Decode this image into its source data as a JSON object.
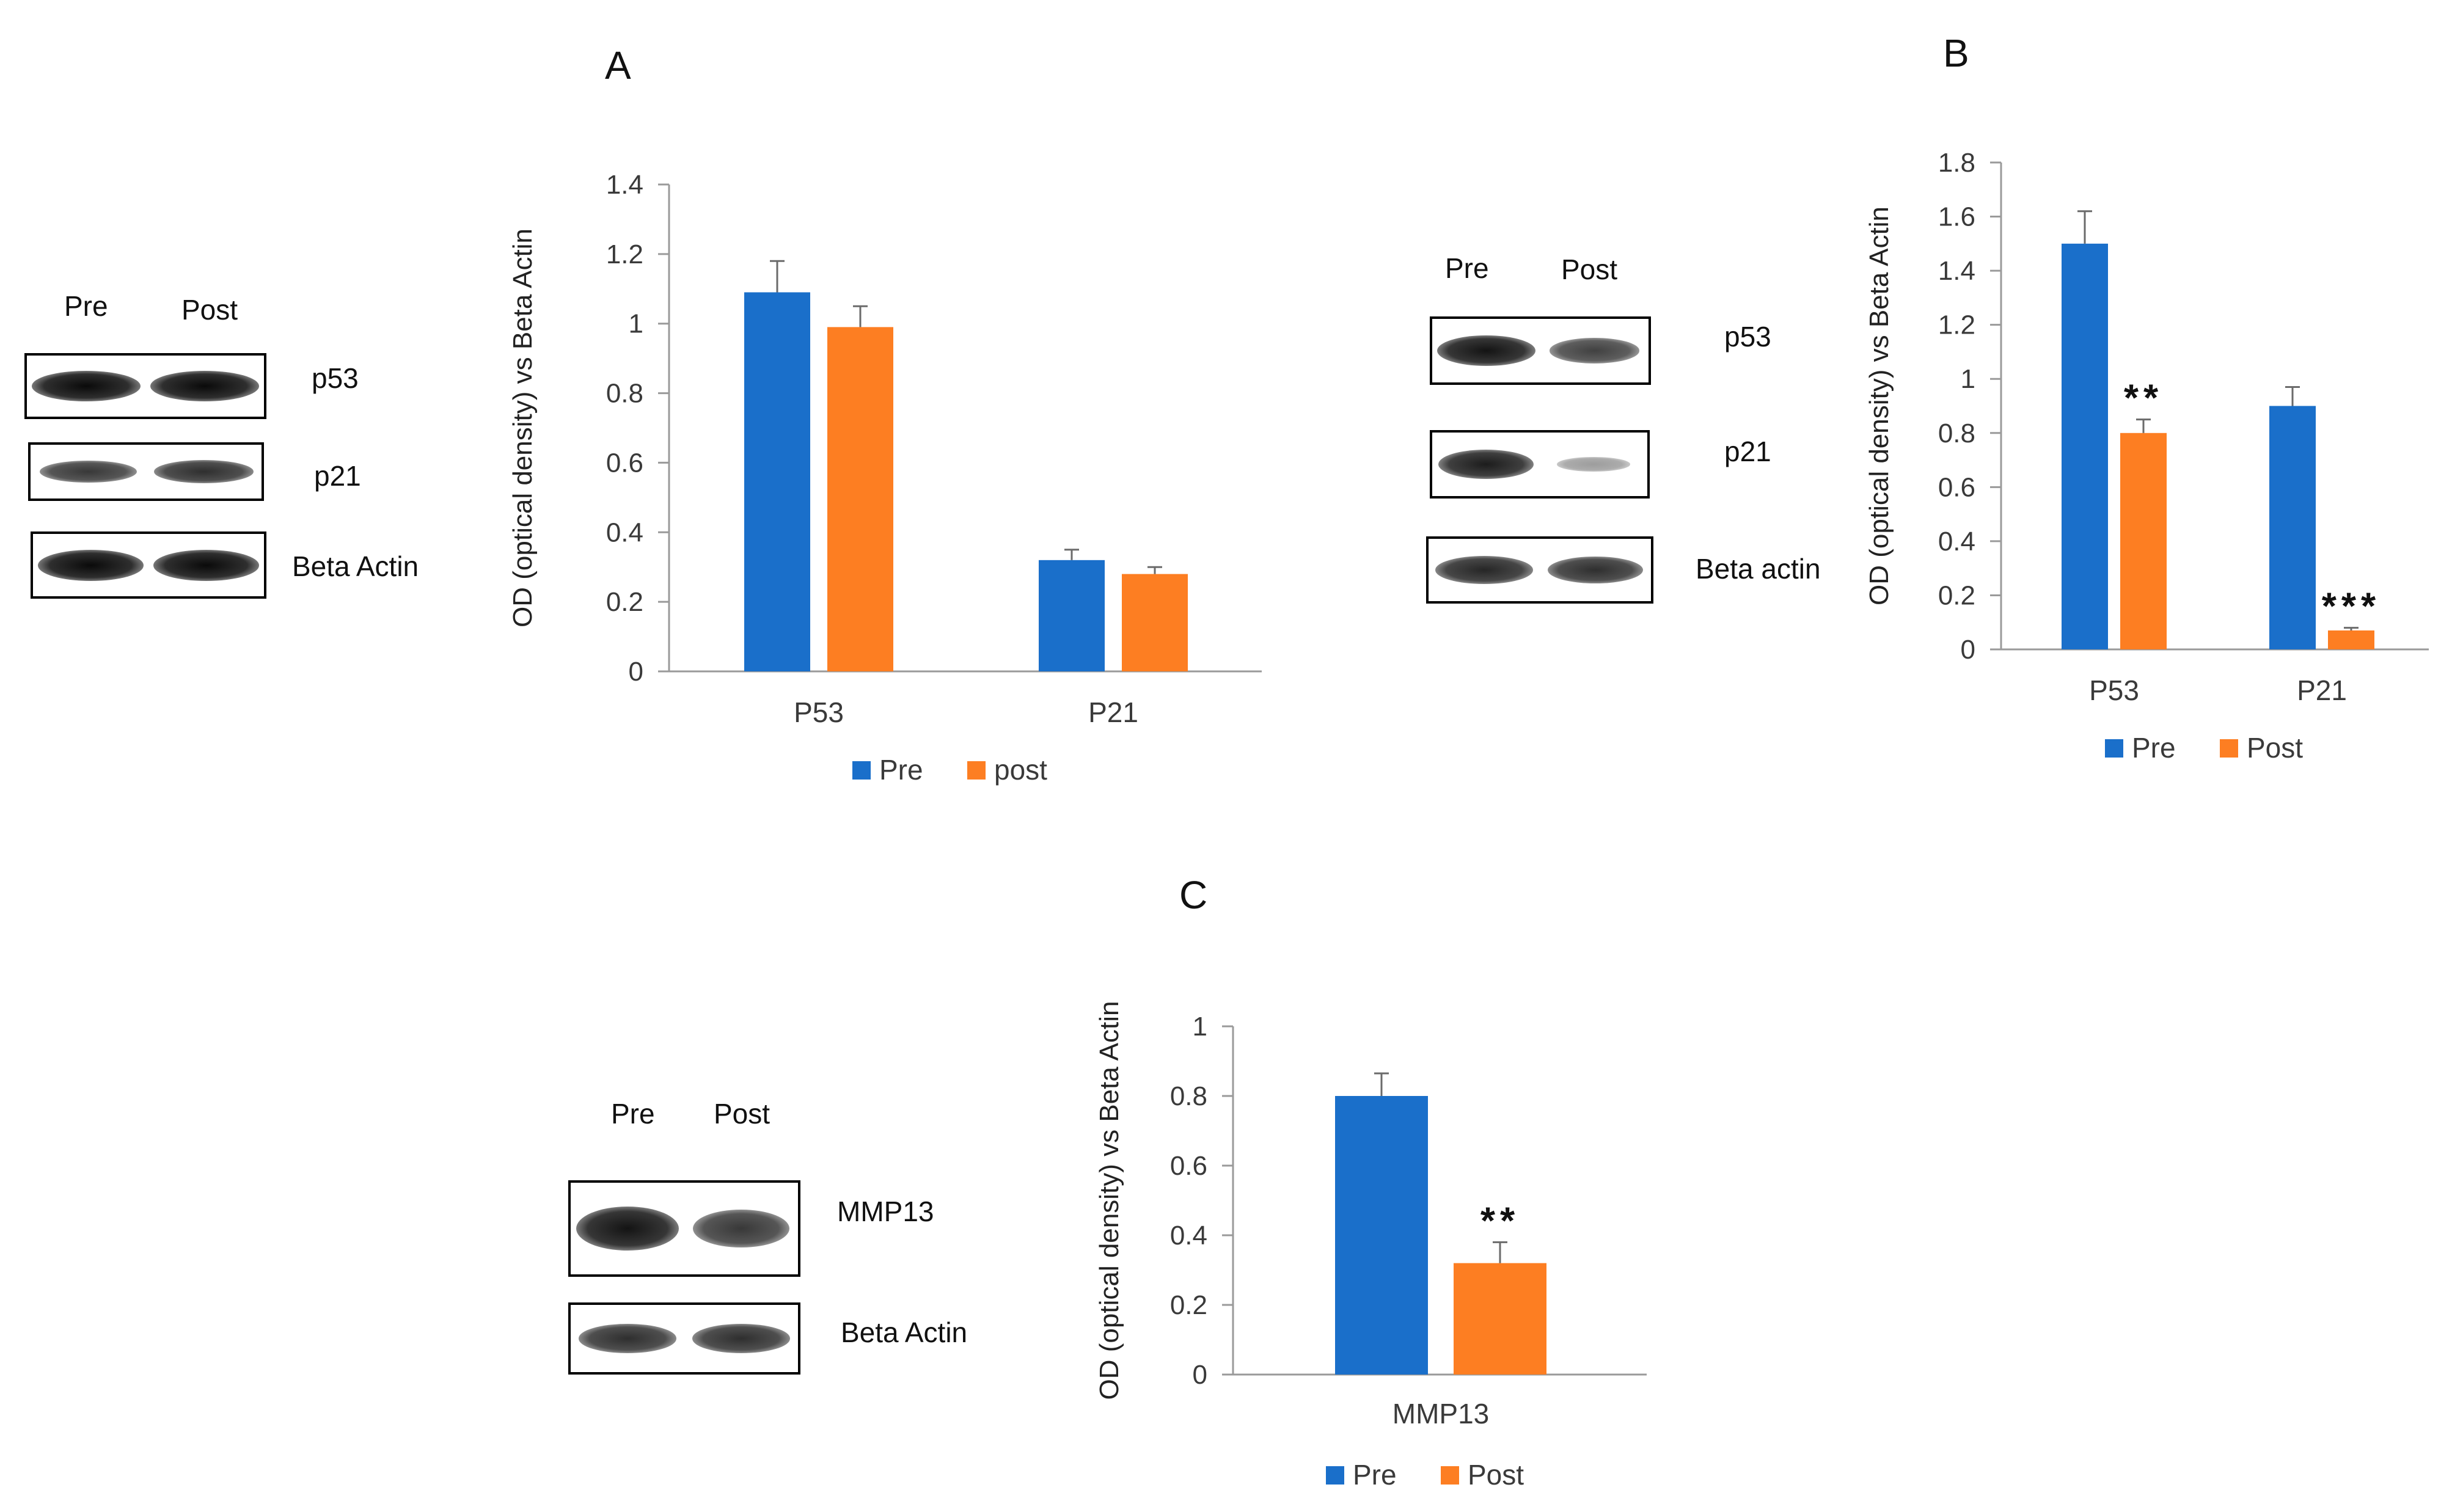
{
  "colors": {
    "pre": "#1a6fca",
    "post": "#fd7e22",
    "axis": "#9a9a9a",
    "error": "#6b6b6b"
  },
  "panels": {
    "A": {
      "letter": "A",
      "blot": {
        "lanes": [
          "Pre",
          "Post"
        ],
        "rows": [
          {
            "label": "p53",
            "intensity": [
              1.0,
              1.0
            ]
          },
          {
            "label": "p21",
            "intensity": [
              0.75,
              0.8
            ]
          },
          {
            "label": "Beta Actin",
            "intensity": [
              1.0,
              1.0
            ]
          }
        ]
      }
    },
    "B": {
      "letter": "B",
      "blot": {
        "lanes": [
          "Pre",
          "Post"
        ],
        "rows": [
          {
            "label": "p53",
            "intensity": [
              0.95,
              0.7
            ]
          },
          {
            "label": "p21",
            "intensity": [
              0.9,
              0.2
            ]
          },
          {
            "label": "Beta actin",
            "intensity": [
              0.85,
              0.8
            ]
          }
        ]
      }
    },
    "C": {
      "letter": "C",
      "blot": {
        "lanes": [
          "Pre",
          "Post"
        ],
        "rows": [
          {
            "label": "MMP13",
            "intensity": [
              0.95,
              0.75
            ]
          },
          {
            "label": "Beta Actin",
            "intensity": [
              0.8,
              0.8
            ]
          }
        ]
      }
    }
  },
  "chart_data": [
    {
      "id": "A",
      "type": "bar",
      "categories": [
        "P53",
        "P21"
      ],
      "series": [
        {
          "name": "Pre",
          "values": [
            1.09,
            0.32
          ],
          "errors": [
            0.09,
            0.03
          ],
          "annotations": [
            "",
            ""
          ]
        },
        {
          "name": "post",
          "values": [
            0.99,
            0.28
          ],
          "errors": [
            0.06,
            0.02
          ],
          "annotations": [
            "",
            ""
          ]
        }
      ],
      "ylabel": "OD (optical density)  vs Beta Actin",
      "ylim": [
        0,
        1.4
      ],
      "yticks": [
        0,
        0.2,
        0.4,
        0.6,
        0.8,
        1,
        1.2,
        1.4
      ],
      "grid": false,
      "legend": "bottom"
    },
    {
      "id": "B",
      "type": "bar",
      "categories": [
        "P53",
        "P21"
      ],
      "series": [
        {
          "name": "Pre",
          "values": [
            1.5,
            0.9
          ],
          "errors": [
            0.12,
            0.07
          ],
          "annotations": [
            "",
            ""
          ]
        },
        {
          "name": "Post",
          "values": [
            0.8,
            0.07
          ],
          "errors": [
            0.05,
            0.01
          ],
          "annotations": [
            "**",
            "***"
          ]
        }
      ],
      "ylabel": "OD (optical density)  vs Beta Actin",
      "ylim": [
        0,
        1.8
      ],
      "yticks": [
        0,
        0.2,
        0.4,
        0.6,
        0.8,
        1,
        1.2,
        1.4,
        1.6,
        1.8
      ],
      "grid": false,
      "legend": "bottom"
    },
    {
      "id": "C",
      "type": "bar",
      "categories": [
        "MMP13"
      ],
      "series": [
        {
          "name": "Pre",
          "values": [
            0.8
          ],
          "errors": [
            0.065
          ],
          "annotations": [
            ""
          ]
        },
        {
          "name": "Post",
          "values": [
            0.32
          ],
          "errors": [
            0.06
          ],
          "annotations": [
            "**"
          ]
        }
      ],
      "ylabel": "OD (optical density)  vs Beta Actin",
      "ylim": [
        0,
        1
      ],
      "yticks": [
        0,
        0.2,
        0.4,
        0.6,
        0.8,
        1
      ],
      "grid": false,
      "legend": "bottom"
    }
  ]
}
